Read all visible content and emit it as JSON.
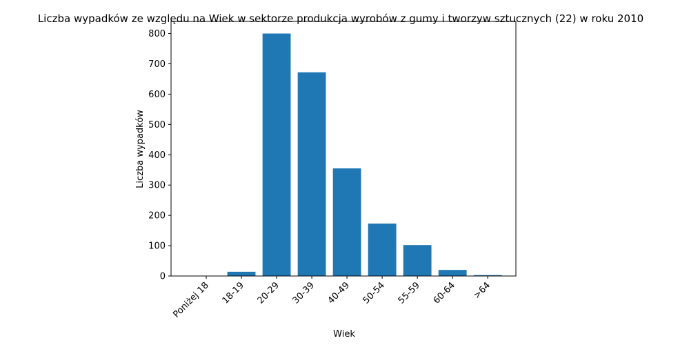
{
  "chart_data": {
    "type": "bar",
    "title": "Liczba wypadków ze względu na Wiek w sektorze produkcja wyrobów z gumy i tworzyw sztucznych (22) w roku 2010",
    "xlabel": "Wiek",
    "ylabel": "Liczba wypadków",
    "categories": [
      "Poniżej 18",
      "18-19",
      "20-29",
      "30-39",
      "40-49",
      "50-54",
      "55-59",
      "60-64",
      ">64"
    ],
    "values": [
      0,
      14,
      800,
      672,
      355,
      173,
      102,
      20,
      3
    ],
    "ylim": [
      0,
      840
    ],
    "yticks": [
      0,
      100,
      200,
      300,
      400,
      500,
      600,
      700,
      800
    ],
    "bar_color": "#1f77b4",
    "grid": false
  }
}
